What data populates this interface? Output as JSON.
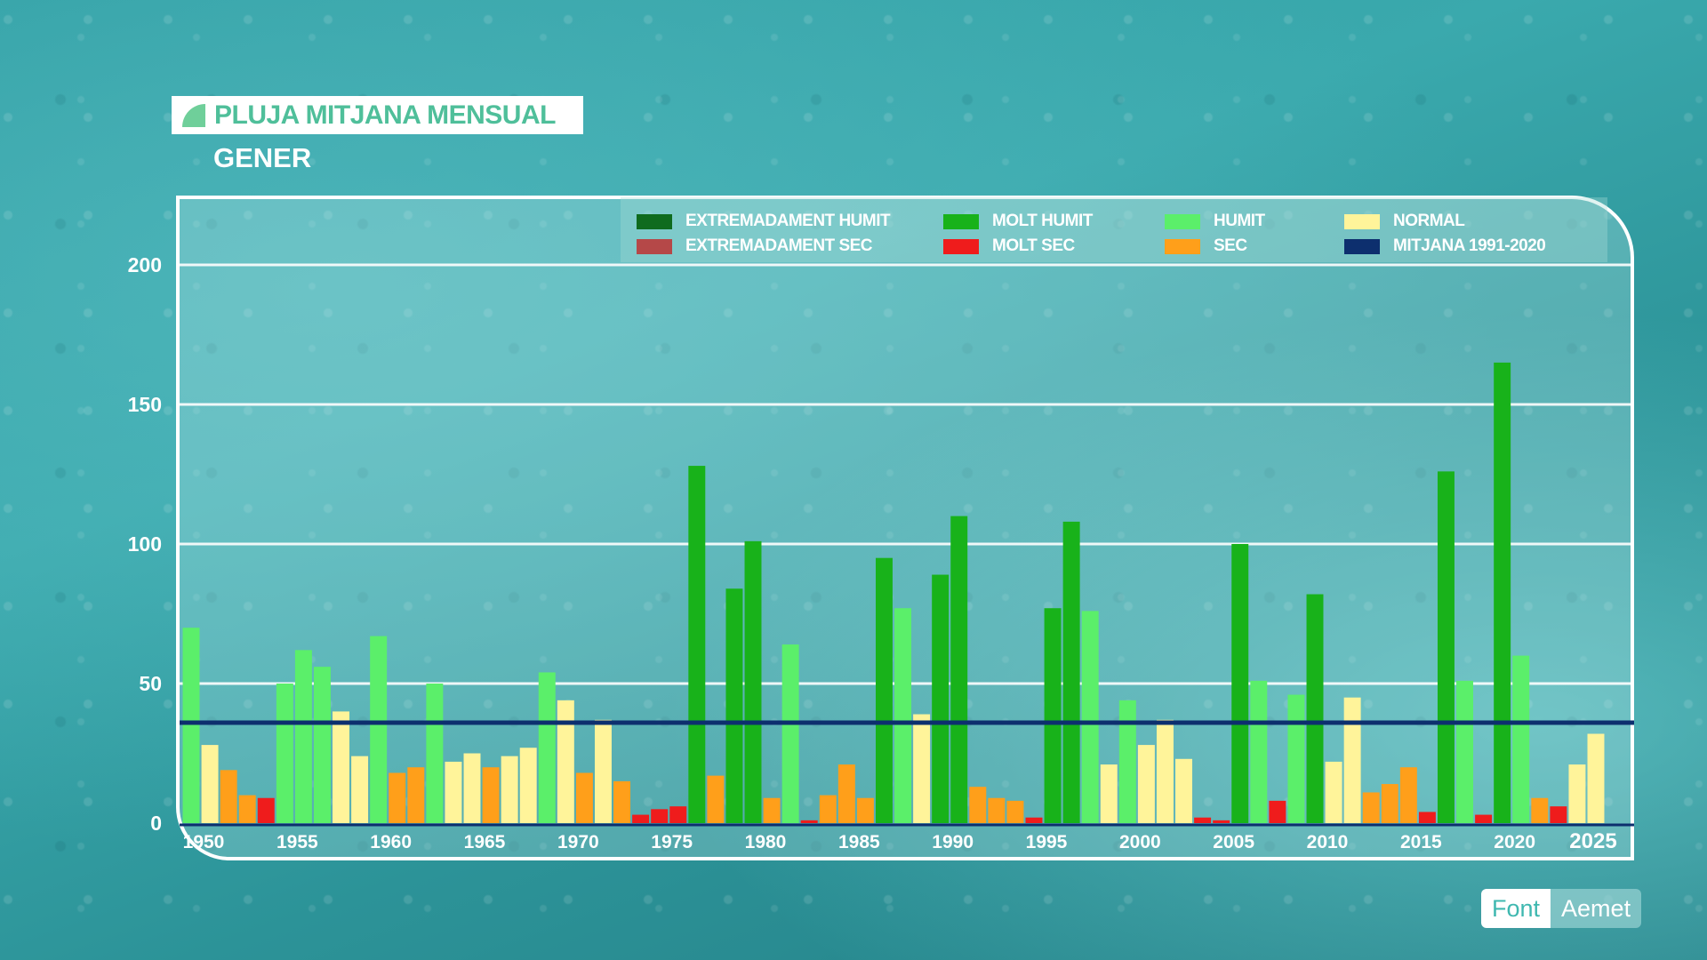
{
  "header": {
    "title": "PLUJA MITJANA MENSUAL",
    "subtitle": "GENER"
  },
  "source": {
    "label": "Font",
    "name": "Aemet"
  },
  "legend": [
    {
      "label": "EXTREMADAMENT HUMIT",
      "color": "#0f6b1e"
    },
    {
      "label": "MOLT HUMIT",
      "color": "#18b21a"
    },
    {
      "label": "HUMIT",
      "color": "#5bef6a"
    },
    {
      "label": "NORMAL",
      "color": "#fff49a"
    },
    {
      "label": "EXTREMADAMENT SEC",
      "color": "#b54848"
    },
    {
      "label": "MOLT SEC",
      "color": "#ef1c1c"
    },
    {
      "label": "SEC",
      "color": "#ff9f1a"
    },
    {
      "label": "MITJANA 1991-2020",
      "color": "#0d2f6e"
    }
  ],
  "chart_data": {
    "type": "bar",
    "x_tick_labels": [
      "1950",
      "1955",
      "1960",
      "1965",
      "1970",
      "1975",
      "1980",
      "1985",
      "1990",
      "1995",
      "2000",
      "2005",
      "2010",
      "2015",
      "2020",
      "2025"
    ],
    "y_tick_labels": [
      "0",
      "50",
      "100",
      "150",
      "200"
    ],
    "ylim": [
      0,
      200
    ],
    "grid": true,
    "reference_line": {
      "name": "MITJANA 1991-2020",
      "value": 36
    },
    "category_colors": {
      "MOLT HUMIT": "#18b21a",
      "HUMIT": "#5bef6a",
      "NORMAL": "#fff49a",
      "SEC": "#ff9f1a",
      "MOLT SEC": "#ef1c1c"
    },
    "bars": [
      {
        "year": 1950,
        "value": 70,
        "category": "HUMIT"
      },
      {
        "year": 1951,
        "value": 28,
        "category": "NORMAL"
      },
      {
        "year": 1952,
        "value": 19,
        "category": "SEC"
      },
      {
        "year": 1953,
        "value": 10,
        "category": "SEC"
      },
      {
        "year": 1954,
        "value": 9,
        "category": "MOLT SEC"
      },
      {
        "year": 1955,
        "value": 50,
        "category": "HUMIT"
      },
      {
        "year": 1956,
        "value": 62,
        "category": "HUMIT"
      },
      {
        "year": 1957,
        "value": 56,
        "category": "HUMIT"
      },
      {
        "year": 1958,
        "value": 40,
        "category": "NORMAL"
      },
      {
        "year": 1959,
        "value": 24,
        "category": "NORMAL"
      },
      {
        "year": 1960,
        "value": 67,
        "category": "HUMIT"
      },
      {
        "year": 1961,
        "value": 18,
        "category": "SEC"
      },
      {
        "year": 1962,
        "value": 20,
        "category": "SEC"
      },
      {
        "year": 1963,
        "value": 50,
        "category": "HUMIT"
      },
      {
        "year": 1964,
        "value": 22,
        "category": "NORMAL"
      },
      {
        "year": 1965,
        "value": 25,
        "category": "NORMAL"
      },
      {
        "year": 1966,
        "value": 20,
        "category": "SEC"
      },
      {
        "year": 1967,
        "value": 24,
        "category": "NORMAL"
      },
      {
        "year": 1968,
        "value": 27,
        "category": "NORMAL"
      },
      {
        "year": 1969,
        "value": 54,
        "category": "HUMIT"
      },
      {
        "year": 1970,
        "value": 44,
        "category": "NORMAL"
      },
      {
        "year": 1971,
        "value": 18,
        "category": "SEC"
      },
      {
        "year": 1972,
        "value": 37,
        "category": "NORMAL"
      },
      {
        "year": 1973,
        "value": 15,
        "category": "SEC"
      },
      {
        "year": 1974,
        "value": 3,
        "category": "MOLT SEC"
      },
      {
        "year": 1975,
        "value": 5,
        "category": "MOLT SEC"
      },
      {
        "year": 1976,
        "value": 6,
        "category": "MOLT SEC"
      },
      {
        "year": 1977,
        "value": 128,
        "category": "MOLT HUMIT"
      },
      {
        "year": 1978,
        "value": 17,
        "category": "SEC"
      },
      {
        "year": 1979,
        "value": 84,
        "category": "MOLT HUMIT"
      },
      {
        "year": 1980,
        "value": 101,
        "category": "MOLT HUMIT"
      },
      {
        "year": 1981,
        "value": 9,
        "category": "SEC"
      },
      {
        "year": 1982,
        "value": 64,
        "category": "HUMIT"
      },
      {
        "year": 1983,
        "value": 1,
        "category": "MOLT SEC"
      },
      {
        "year": 1984,
        "value": 10,
        "category": "SEC"
      },
      {
        "year": 1985,
        "value": 21,
        "category": "SEC"
      },
      {
        "year": 1986,
        "value": 9,
        "category": "SEC"
      },
      {
        "year": 1987,
        "value": 95,
        "category": "MOLT HUMIT"
      },
      {
        "year": 1988,
        "value": 77,
        "category": "HUMIT"
      },
      {
        "year": 1989,
        "value": 39,
        "category": "NORMAL"
      },
      {
        "year": 1990,
        "value": 89,
        "category": "MOLT HUMIT"
      },
      {
        "year": 1991,
        "value": 110,
        "category": "MOLT HUMIT"
      },
      {
        "year": 1992,
        "value": 13,
        "category": "SEC"
      },
      {
        "year": 1993,
        "value": 9,
        "category": "SEC"
      },
      {
        "year": 1994,
        "value": 8,
        "category": "SEC"
      },
      {
        "year": 1995,
        "value": 2,
        "category": "MOLT SEC"
      },
      {
        "year": 1996,
        "value": 77,
        "category": "MOLT HUMIT"
      },
      {
        "year": 1997,
        "value": 108,
        "category": "MOLT HUMIT"
      },
      {
        "year": 1998,
        "value": 76,
        "category": "HUMIT"
      },
      {
        "year": 1999,
        "value": 21,
        "category": "NORMAL"
      },
      {
        "year": 2000,
        "value": 44,
        "category": "HUMIT"
      },
      {
        "year": 2001,
        "value": 28,
        "category": "NORMAL"
      },
      {
        "year": 2002,
        "value": 37,
        "category": "NORMAL"
      },
      {
        "year": 2003,
        "value": 23,
        "category": "NORMAL"
      },
      {
        "year": 2004,
        "value": 2,
        "category": "MOLT SEC"
      },
      {
        "year": 2005,
        "value": 1,
        "category": "MOLT SEC"
      },
      {
        "year": 2006,
        "value": 100,
        "category": "MOLT HUMIT"
      },
      {
        "year": 2007,
        "value": 51,
        "category": "HUMIT"
      },
      {
        "year": 2008,
        "value": 8,
        "category": "MOLT SEC"
      },
      {
        "year": 2009,
        "value": 46,
        "category": "HUMIT"
      },
      {
        "year": 2010,
        "value": 82,
        "category": "MOLT HUMIT"
      },
      {
        "year": 2011,
        "value": 22,
        "category": "NORMAL"
      },
      {
        "year": 2012,
        "value": 45,
        "category": "NORMAL"
      },
      {
        "year": 2013,
        "value": 11,
        "category": "SEC"
      },
      {
        "year": 2014,
        "value": 14,
        "category": "SEC"
      },
      {
        "year": 2015,
        "value": 20,
        "category": "SEC"
      },
      {
        "year": 2016,
        "value": 4,
        "category": "MOLT SEC"
      },
      {
        "year": 2017,
        "value": 126,
        "category": "MOLT HUMIT"
      },
      {
        "year": 2018,
        "value": 51,
        "category": "HUMIT"
      },
      {
        "year": 2019,
        "value": 3,
        "category": "MOLT SEC"
      },
      {
        "year": 2020,
        "value": 165,
        "category": "MOLT HUMIT"
      },
      {
        "year": 2021,
        "value": 60,
        "category": "HUMIT"
      },
      {
        "year": 2022,
        "value": 9,
        "category": "SEC"
      },
      {
        "year": 2023,
        "value": 6,
        "category": "MOLT SEC"
      },
      {
        "year": 2024,
        "value": 21,
        "category": "NORMAL"
      },
      {
        "year": 2025,
        "value": 32,
        "category": "NORMAL"
      }
    ]
  }
}
